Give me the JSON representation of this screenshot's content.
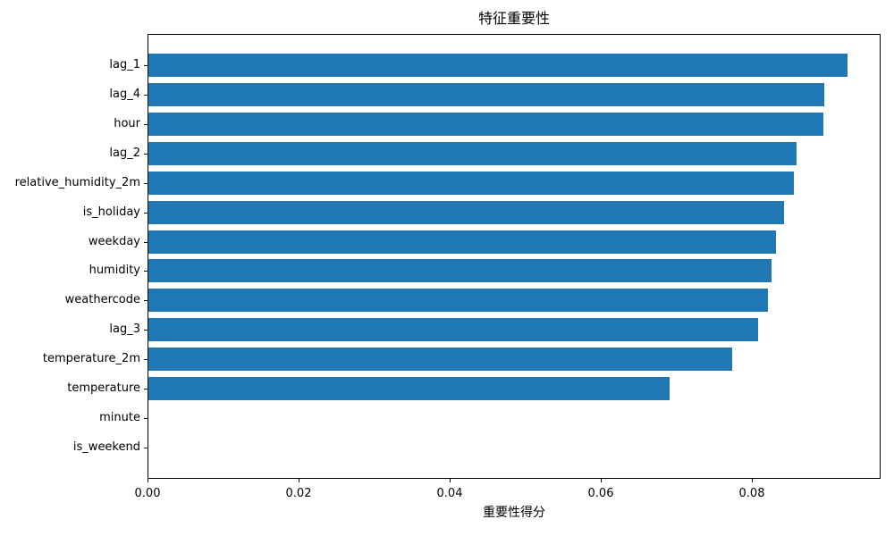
{
  "chart_data": {
    "type": "bar",
    "orientation": "horizontal",
    "title": "特征重要性",
    "xlabel": "重要性得分",
    "ylabel": "",
    "categories": [
      "lag_1",
      "lag_4",
      "hour",
      "lag_2",
      "relative_humidity_2m",
      "is_holiday",
      "weekday",
      "humidity",
      "weathercode",
      "lag_3",
      "temperature_2m",
      "temperature",
      "minute",
      "is_weekend"
    ],
    "values": [
      0.0925,
      0.0895,
      0.0893,
      0.0858,
      0.0854,
      0.0841,
      0.0831,
      0.0825,
      0.082,
      0.0807,
      0.0773,
      0.069,
      0.0,
      0.0
    ],
    "xticks": [
      0.0,
      0.02,
      0.04,
      0.06,
      0.08
    ],
    "xtick_labels": [
      "0.00",
      "0.02",
      "0.04",
      "0.06",
      "0.08"
    ],
    "xlim": [
      0,
      0.0971
    ],
    "grid": false,
    "legend": null,
    "bar_color": "#1f77b4",
    "background_color": "#ffffff",
    "text_color": "#000000"
  }
}
